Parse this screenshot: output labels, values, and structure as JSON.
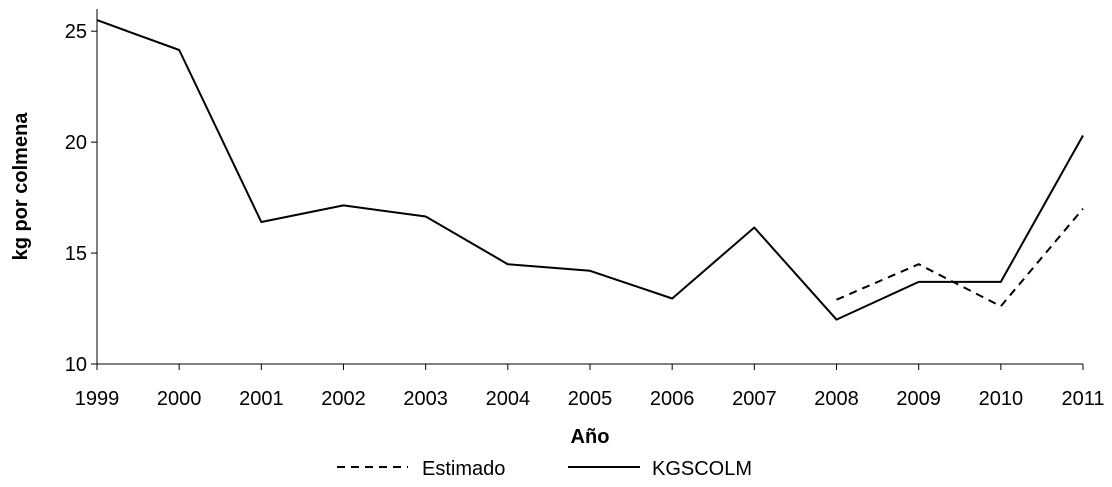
{
  "chart_data": {
    "type": "line",
    "title": "",
    "xlabel": "Año",
    "ylabel": "kg por colmena",
    "x": [
      "1999",
      "2000",
      "2001",
      "2002",
      "2003",
      "2004",
      "2005",
      "2006",
      "2007",
      "2008",
      "2009",
      "2010",
      "2011"
    ],
    "ylim": [
      10,
      26
    ],
    "yticks": [
      10,
      15,
      20,
      25
    ],
    "grid": false,
    "legend_position": "bottom",
    "series": [
      {
        "name": "Estimado",
        "style": "dashed",
        "color": "#000000",
        "values": [
          null,
          null,
          null,
          null,
          null,
          null,
          null,
          null,
          null,
          12.9,
          14.5,
          12.6,
          17.0
        ]
      },
      {
        "name": "KGSCOLM",
        "style": "solid",
        "color": "#000000",
        "values": [
          25.5,
          24.15,
          16.4,
          17.15,
          16.65,
          14.5,
          14.2,
          12.95,
          16.15,
          12.0,
          13.7,
          13.7,
          20.3
        ]
      }
    ]
  }
}
